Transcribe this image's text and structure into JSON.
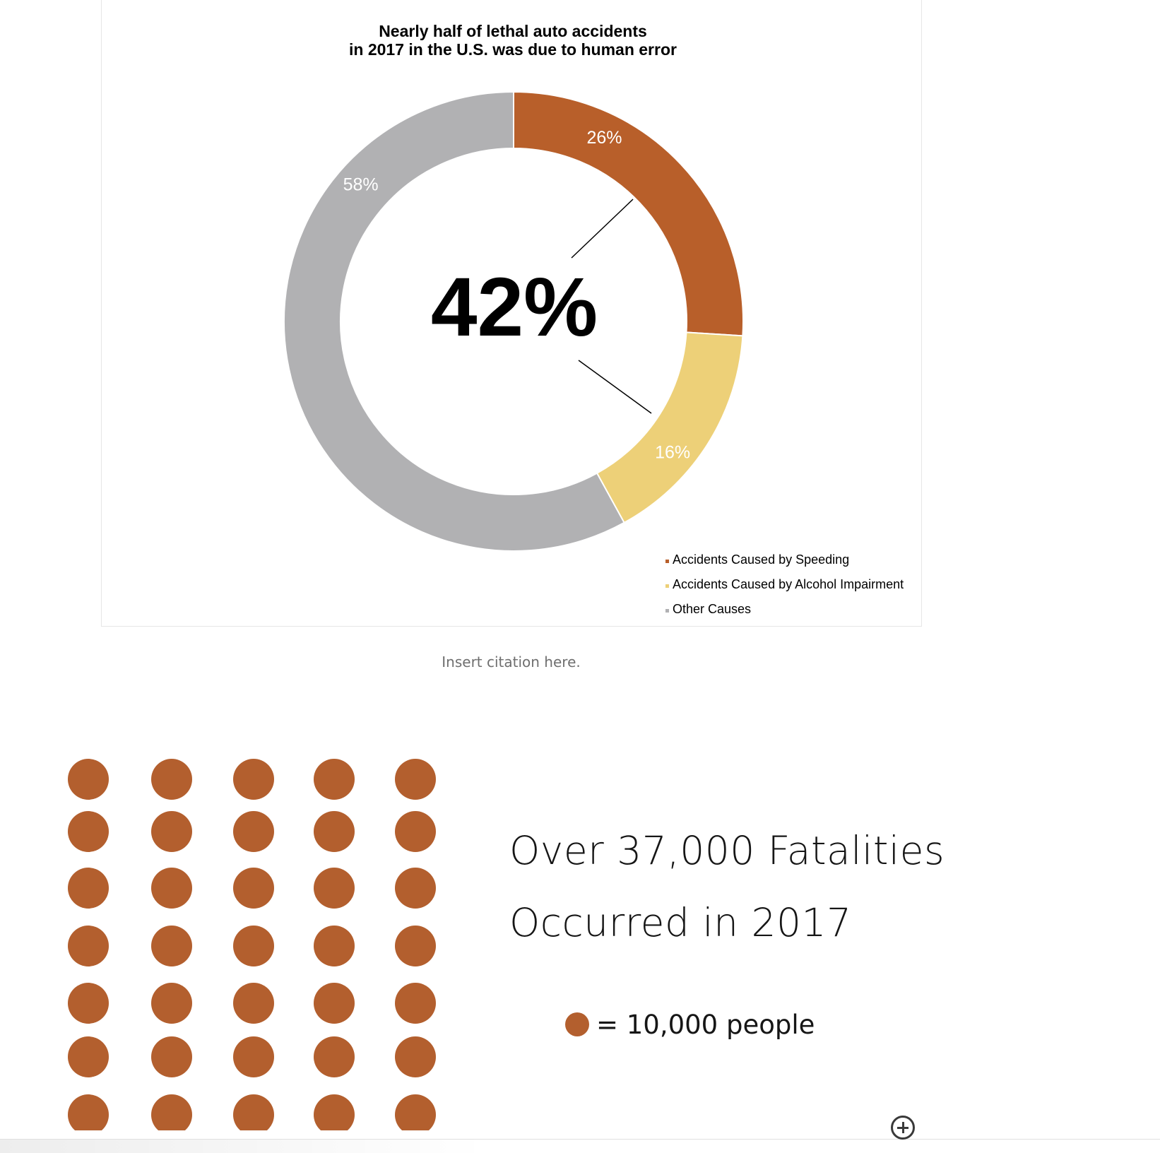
{
  "chart_data": {
    "type": "pie",
    "title_lines": [
      "Nearly half of lethal auto accidents",
      "in 2017 in the U.S. was due to human error"
    ],
    "slices": [
      {
        "label": "Accidents Caused by Speeding",
        "value": 26,
        "value_label": "26%",
        "color": "#b85f2a"
      },
      {
        "label": "Accidents Caused by Alcohol Impairment",
        "value": 16,
        "value_label": "16%",
        "color": "#edd078"
      },
      {
        "label": "Other Causes",
        "value": 58,
        "value_label": "58%",
        "color": "#b1b1b3"
      }
    ],
    "center_label": "42%",
    "legend_position": "bottom-right"
  },
  "citation": "Insert citation here.",
  "pictogram": {
    "rows": 7,
    "columns": 5,
    "dot_color": "#b35f2e",
    "headline_line1": "Over 37,000 Fatalities",
    "headline_line2": "Occurred in 2017",
    "key_text": "= 10,000 people"
  },
  "controls": {
    "add_icon": "plus-circle-icon"
  }
}
